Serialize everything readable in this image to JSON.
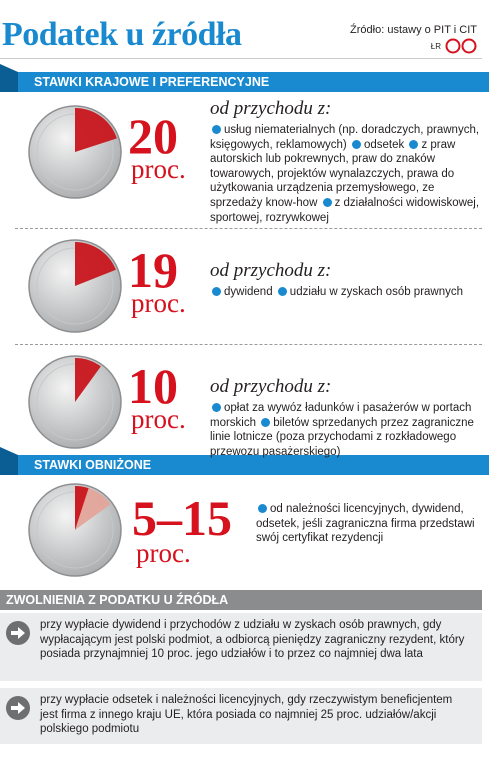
{
  "header": {
    "title": "Podatek u źródła",
    "source": "Źródło: ustawy o PIT i CIT",
    "credit": "ŁR"
  },
  "sections": [
    {
      "title": "STAWKI KRAJOWE I PREFERENCYJNE",
      "items": [
        {
          "rate": 20,
          "unit": "proc.",
          "lead": "od przychodu z:",
          "bullets": [
            "usług niematerialnych (np. doradczych, prawnych, księgowych, reklamowych)",
            "odsetek",
            "z praw autorskich lub pokrewnych, praw do znaków towarowych, projektów wynalazczych, prawa do użytkowania urządzenia przemysłowego, ze sprzedaży know-how",
            "z działalności widowiskowej, sportowej, rozrywkowej"
          ]
        },
        {
          "rate": 19,
          "unit": "proc.",
          "lead": "od przychodu z:",
          "bullets": [
            "dywidend",
            "udziału w zyskach osób prawnych"
          ]
        },
        {
          "rate": 10,
          "unit": "proc.",
          "lead": "od przychodu z:",
          "bullets": [
            "opłat za wywóz ładunków i pasażerów w portach morskich",
            "biletów sprzedanych przez zagraniczne linie lotnicze (poza przychodami z rozkładowego przewozu pasażerskiego)"
          ]
        }
      ]
    },
    {
      "title": "STAWKI OBNIŻONE",
      "items": [
        {
          "rate_low": 5,
          "rate_high": 15,
          "rate_label": "5–15",
          "unit": "proc.",
          "bullets": [
            "od należności licencyjnych, dywidend, odsetek, jeśli zagraniczna firma przedstawi swój certyfikat rezydencji"
          ]
        }
      ]
    },
    {
      "title": "ZWOLNIENIA Z PODATKU U ŹRÓDŁA",
      "exemptions": [
        "przy wypłacie dywidend i przychodów z udziału w zyskach osób prawnych, gdy wypłacającym jest polski podmiot, a odbiorcą pieniędzy zagraniczny rezydent, który posiada przynajmniej 10 proc. jego udziałów i to przez co najmniej dwa lata",
        "przy wypłacie odsetek i należności licencyjnych, gdy rzeczywistym beneficjentem jest firma z innego kraju UE, która posiada co najmniej 25 proc. udziałów/akcji polskiego podmiotu"
      ]
    }
  ]
}
